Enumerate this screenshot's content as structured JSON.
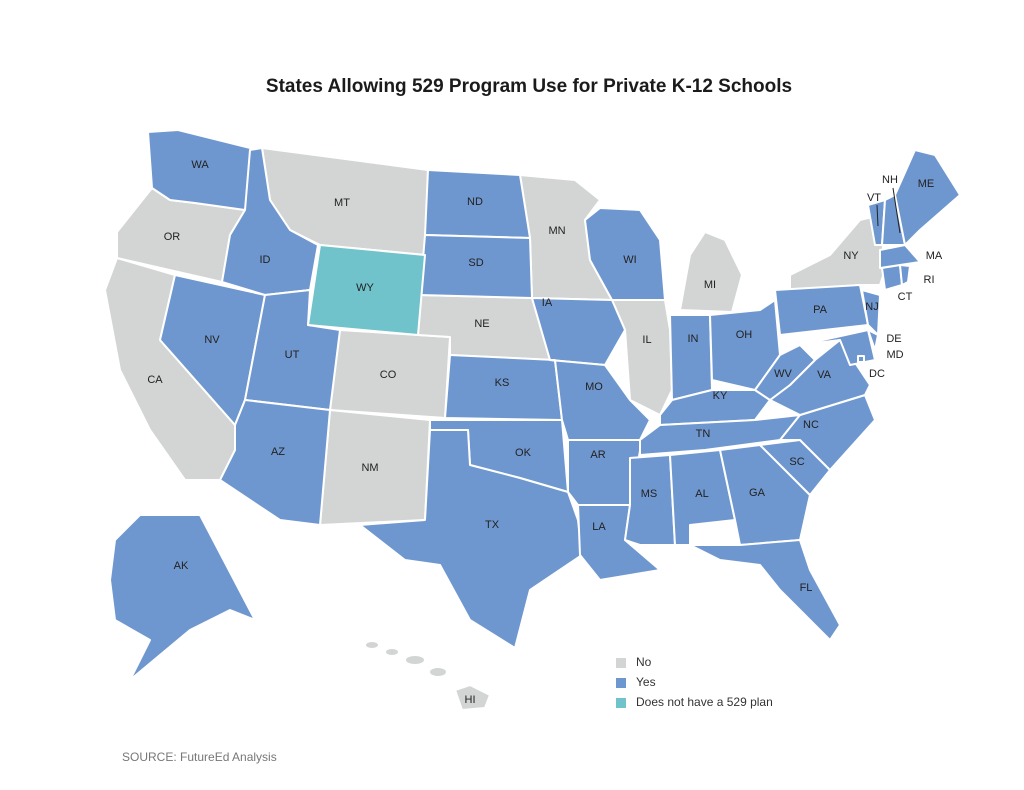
{
  "title": "States Allowing 529 Program Use for Private K-12 Schools",
  "legend": [
    {
      "label": "No",
      "color": "#d3d5d5",
      "states": [
        "OR",
        "CA",
        "MT",
        "CO",
        "NM",
        "NE",
        "MN",
        "MI",
        "IL",
        "NY",
        "HI"
      ]
    },
    {
      "label": "Yes",
      "color": "#6f97cf",
      "states": [
        "WA",
        "ID",
        "NV",
        "UT",
        "AZ",
        "ND",
        "SD",
        "KS",
        "OK",
        "TX",
        "IA",
        "MO",
        "AR",
        "LA",
        "WI",
        "IN",
        "OH",
        "KY",
        "TN",
        "MS",
        "AL",
        "GA",
        "FL",
        "SC",
        "NC",
        "VA",
        "WV",
        "PA",
        "NJ",
        "DE",
        "MD",
        "DC",
        "CT",
        "RI",
        "MA",
        "VT",
        "NH",
        "ME",
        "AK"
      ]
    },
    {
      "label": "Does not have a 529 plan",
      "color": "#70c3cb",
      "states": [
        "WY"
      ]
    }
  ],
  "source": "SOURCE: FutureEd Analysis"
}
